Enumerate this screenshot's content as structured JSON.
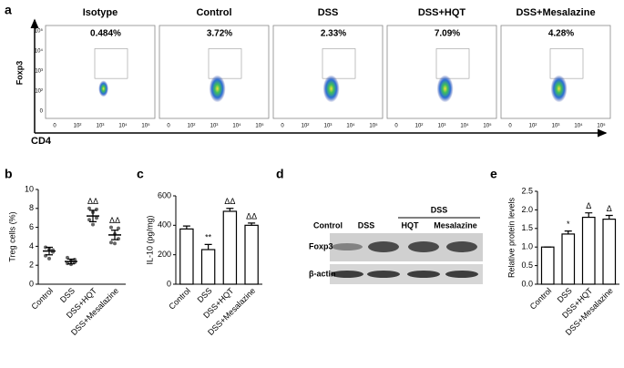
{
  "panel_labels": [
    "a",
    "b",
    "c",
    "d",
    "e"
  ],
  "flow_cytometry": {
    "y_label": "Foxp3",
    "x_label": "CD4",
    "y_tick_labels": [
      "10⁵",
      "10⁴",
      "10³",
      "10²",
      "0"
    ],
    "x_tick_labels": [
      "0",
      "10²",
      "10³",
      "10⁴",
      "10⁵"
    ],
    "plots": [
      {
        "title": "Isotype",
        "percent": "0.484%"
      },
      {
        "title": "Control",
        "percent": "3.72%"
      },
      {
        "title": "DSS",
        "percent": "2.33%"
      },
      {
        "title": "DSS+HQT",
        "percent": "7.09%"
      },
      {
        "title": "DSS+Mesalazine",
        "percent": "4.28%"
      }
    ]
  },
  "western_blot": {
    "group": "DSS",
    "lanes": [
      "Control",
      "DSS",
      "HQT",
      "Mesalazine"
    ],
    "rows": [
      "Foxp3",
      "β-actin"
    ]
  },
  "chart_data": [
    {
      "type": "dot",
      "y_label": "Treg cells (%)",
      "categories": [
        "Control",
        "DSS",
        "DSS+HQT",
        "DSS+Mesalazine"
      ],
      "values": [
        3.5,
        2.4,
        7.2,
        5.2
      ],
      "errors": [
        0.4,
        0.25,
        0.6,
        0.5
      ],
      "points": [
        [
          3.9,
          3.7,
          3.4,
          3.0,
          2.7,
          3.6
        ],
        [
          2.8,
          2.5,
          2.3,
          2.2,
          2.1,
          2.6
        ],
        [
          8.0,
          7.6,
          7.0,
          6.8,
          6.3,
          7.9
        ],
        [
          6.0,
          5.3,
          4.8,
          4.4,
          4.3,
          5.9
        ]
      ],
      "annotations": [
        null,
        null,
        "ΔΔ",
        "ΔΔ"
      ],
      "ylim": [
        0,
        10
      ],
      "yticks": [
        0,
        2,
        4,
        6,
        8,
        10
      ]
    },
    {
      "type": "bar",
      "y_label": "IL-10 (pg/mg)",
      "categories": [
        "Control",
        "DSS",
        "DSS+HQT",
        "DSS+Mesalazine"
      ],
      "values": [
        375,
        235,
        495,
        400
      ],
      "errors": [
        20,
        35,
        20,
        15
      ],
      "annotations": [
        null,
        "**",
        "ΔΔ",
        "ΔΔ"
      ],
      "ylim": [
        0,
        600
      ],
      "yticks": [
        0,
        200,
        400,
        600
      ]
    },
    {
      "type": "bar",
      "y_label": "Relative protein levels",
      "categories": [
        "Control",
        "DSS",
        "DSS+HQT",
        "DSS+Mesalazine"
      ],
      "values": [
        1.0,
        1.35,
        1.8,
        1.75
      ],
      "errors": [
        0,
        0.08,
        0.12,
        0.1
      ],
      "annotations": [
        null,
        "*",
        "Δ",
        "Δ"
      ],
      "ylim": [
        0,
        2.5
      ],
      "yticks": [
        {
          "value": 0,
          "label": "0.0"
        },
        0.5,
        {
          "value": 1,
          "label": "1.0"
        },
        1.5,
        {
          "value": 2,
          "label": "2.0"
        },
        2.5
      ]
    }
  ]
}
